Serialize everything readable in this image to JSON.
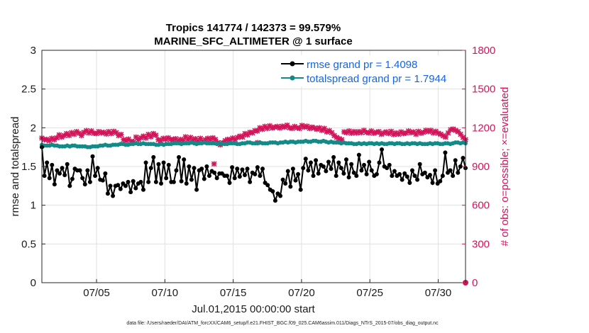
{
  "chart_data": {
    "type": "line",
    "title_line1": "Tropics 141774 / 142373 = 99.579%",
    "title_line2": "MARINE_SFC_ALTIMETER @ 1 surface",
    "xlabel": "Jul.01,2015 00:00:00 start",
    "ylabel_left": "rmse and totalspread",
    "ylabel_right": "# of obs: o=possible; ×=evaluated",
    "x_range_days": [
      1.0,
      32.0
    ],
    "xticks": [
      {
        "day": 5,
        "label": "07/05"
      },
      {
        "day": 10,
        "label": "07/10"
      },
      {
        "day": 15,
        "label": "07/15"
      },
      {
        "day": 20,
        "label": "07/20"
      },
      {
        "day": 25,
        "label": "07/25"
      },
      {
        "day": 30,
        "label": "07/30"
      }
    ],
    "ylim_left": [
      0,
      3
    ],
    "yticks_left": [
      "0",
      "0.5",
      "1",
      "1.5",
      "2",
      "2.5",
      "3"
    ],
    "ylim_right": [
      0,
      1800
    ],
    "yticks_right": [
      "0",
      "300",
      "600",
      "900",
      "1200",
      "1500",
      "1800"
    ],
    "footnote": "data file: /Users/raeder/DAI/ATM_forcXX/CAM6_setup/f.e21.FHIST_BGC.f09_025.CAM6assim.011/Diags_NTrS_2015-07/obs_diag_output.nc",
    "colors": {
      "rmse": "#000000",
      "spread": "#138a88",
      "obs": "#d4145a",
      "legend_text": "#1565e6",
      "grid": "#e1e1e1"
    },
    "series": [
      {
        "name": "rmse grand pr = 1.4098",
        "axis": "left",
        "marker": "o",
        "values": [
          1.75,
          1.38,
          1.55,
          1.35,
          1.52,
          1.27,
          1.45,
          1.41,
          1.48,
          1.39,
          1.53,
          1.25,
          1.34,
          1.47,
          1.45,
          1.45,
          1.35,
          1.27,
          1.45,
          1.3,
          1.63,
          1.38,
          1.48,
          1.33,
          1.32,
          1.41,
          1.15,
          1.25,
          1.12,
          1.25,
          1.26,
          1.21,
          1.28,
          1.25,
          1.3,
          1.17,
          1.31,
          1.22,
          1.28,
          1.3,
          1.2,
          1.55,
          1.3,
          1.48,
          1.62,
          1.3,
          1.53,
          1.28,
          1.55,
          1.35,
          1.52,
          1.3,
          1.3,
          1.45,
          1.62,
          1.31,
          1.59,
          1.28,
          1.5,
          1.33,
          1.48,
          1.2,
          1.45,
          1.47,
          1.34,
          1.5,
          1.38,
          1.44,
          1.42,
          1.35,
          1.41,
          1.41,
          1.38,
          1.38,
          1.29,
          1.49,
          1.35,
          1.47,
          1.37,
          1.46,
          1.39,
          1.47,
          1.3,
          1.42,
          1.4,
          1.49,
          1.38,
          1.47,
          1.29,
          1.26,
          1.2,
          1.18,
          1.06,
          1.15,
          1.12,
          1.33,
          1.28,
          1.44,
          1.24,
          1.47,
          1.32,
          1.4,
          1.2,
          1.48,
          1.6,
          1.45,
          1.55,
          1.38,
          1.58,
          1.41,
          1.52,
          1.5,
          1.44,
          1.56,
          1.47,
          1.62,
          1.38,
          1.55,
          1.48,
          1.41,
          1.59,
          1.36,
          1.53,
          1.42,
          1.38,
          1.65,
          1.45,
          1.52,
          1.4,
          1.56,
          1.45,
          1.38,
          1.4,
          1.55,
          1.72,
          1.5,
          1.48,
          1.52,
          1.38,
          1.44,
          1.38,
          1.4,
          1.33,
          1.41,
          1.37,
          1.29,
          1.45,
          1.38,
          1.33,
          1.53,
          1.4,
          1.42,
          1.36,
          1.39,
          1.29,
          1.45,
          1.28,
          1.31,
          1.38,
          1.68,
          1.42,
          1.45,
          1.38,
          1.58,
          1.42,
          1.5,
          1.61,
          1.48
        ]
      },
      {
        "name": "totalspread grand pr = 1.7944",
        "axis": "left",
        "marker": "o",
        "values": [
          1.78,
          1.77,
          1.77,
          1.77,
          1.78,
          1.77,
          1.77,
          1.76,
          1.76,
          1.76,
          1.77,
          1.76,
          1.77,
          1.77,
          1.76,
          1.76,
          1.76,
          1.76,
          1.75,
          1.75,
          1.76,
          1.76,
          1.76,
          1.77,
          1.77,
          1.78,
          1.77,
          1.77,
          1.78,
          1.78,
          1.78,
          1.79,
          1.79,
          1.78,
          1.78,
          1.79,
          1.79,
          1.8,
          1.79,
          1.79,
          1.8,
          1.79,
          1.79,
          1.79,
          1.79,
          1.78,
          1.78,
          1.79,
          1.78,
          1.79,
          1.79,
          1.79,
          1.8,
          1.8,
          1.8,
          1.79,
          1.8,
          1.8,
          1.8,
          1.81,
          1.8,
          1.79,
          1.8,
          1.8,
          1.81,
          1.8,
          1.8,
          1.8,
          1.8,
          1.79,
          1.8,
          1.79,
          1.79,
          1.79,
          1.8,
          1.8,
          1.8,
          1.79,
          1.79,
          1.8,
          1.8,
          1.81,
          1.81,
          1.8,
          1.8,
          1.8,
          1.81,
          1.8,
          1.8,
          1.8,
          1.81,
          1.81,
          1.81,
          1.8,
          1.81,
          1.81,
          1.82,
          1.81,
          1.82,
          1.82,
          1.81,
          1.82,
          1.82,
          1.82,
          1.83,
          1.82,
          1.82,
          1.83,
          1.83,
          1.82,
          1.82,
          1.83,
          1.82,
          1.81,
          1.82,
          1.81,
          1.81,
          1.81,
          1.8,
          1.81,
          1.8,
          1.8,
          1.8,
          1.79,
          1.79,
          1.8,
          1.79,
          1.8,
          1.79,
          1.8,
          1.8,
          1.79,
          1.8,
          1.79,
          1.8,
          1.79,
          1.79,
          1.8,
          1.8,
          1.79,
          1.8,
          1.8,
          1.79,
          1.79,
          1.8,
          1.79,
          1.8,
          1.8,
          1.79,
          1.8,
          1.79,
          1.79,
          1.79,
          1.8,
          1.79,
          1.8,
          1.8,
          1.79,
          1.79,
          1.8,
          1.8,
          1.79,
          1.8,
          1.81,
          1.81,
          1.8,
          1.81,
          1.8
        ]
      },
      {
        "name": "obs evaluated",
        "axis": "right",
        "marker": "x",
        "values": [
          1120,
          1108,
          1110,
          1100,
          1118,
          1108,
          1122,
          1145,
          1128,
          1140,
          1155,
          1140,
          1162,
          1150,
          1170,
          1158,
          1140,
          1165,
          1178,
          1160,
          1175,
          1158,
          1155,
          1170,
          1160,
          1165,
          1152,
          1170,
          1155,
          1172,
          1162,
          1140,
          1148,
          1108,
          1100,
          1112,
          1095,
          1090,
          1128,
          1108,
          1122,
          1135,
          1120,
          1148,
          1130,
          1155,
          1142,
          1108,
          1100,
          1118,
          1110,
          1122,
          1110,
          1108,
          1115,
          1095,
          1110,
          1100,
          1130,
          1110,
          1125,
          1105,
          1115,
          1095,
          1118,
          1090,
          1108,
          1118,
          1110,
          1122,
          1110,
          1085,
          1068,
          1085,
          1100,
          1110,
          1105,
          1120,
          1108,
          1125,
          1135,
          1128,
          1155,
          1145,
          1165,
          1160,
          1178,
          1175,
          1200,
          1188,
          1210,
          1195,
          1215,
          1198,
          1205,
          1210,
          1198,
          1212,
          1205,
          1220,
          1200,
          1195,
          1210,
          1200,
          1195,
          1218,
          1205,
          1212,
          1195,
          1205,
          1198,
          1188,
          1200,
          1180,
          1195,
          1168,
          1178,
          1162,
          1140,
          1125,
          1115,
          1108,
          1168,
          1162,
          1175,
          1158,
          1170,
          1160,
          1170,
          1162,
          1180,
          1165,
          1160,
          1175,
          1158,
          1165,
          1170,
          1150,
          1160,
          1168,
          1155,
          1172,
          1148,
          1160,
          1150,
          1168,
          1155,
          1160,
          1175,
          1162,
          1168,
          1150,
          1172,
          1158,
          1165,
          1180,
          1170,
          1180,
          1160,
          1172,
          1158,
          1150,
          1138,
          1128,
          1160,
          1185,
          1190,
          1180,
          1170,
          1150,
          1125,
          1108
        ]
      }
    ],
    "outliers_obs": [
      {
        "day": 13.6,
        "value": 920
      },
      {
        "day": 16.8,
        "value": 1085
      }
    ],
    "zero_point": {
      "day": 32.0,
      "value": 0
    }
  }
}
